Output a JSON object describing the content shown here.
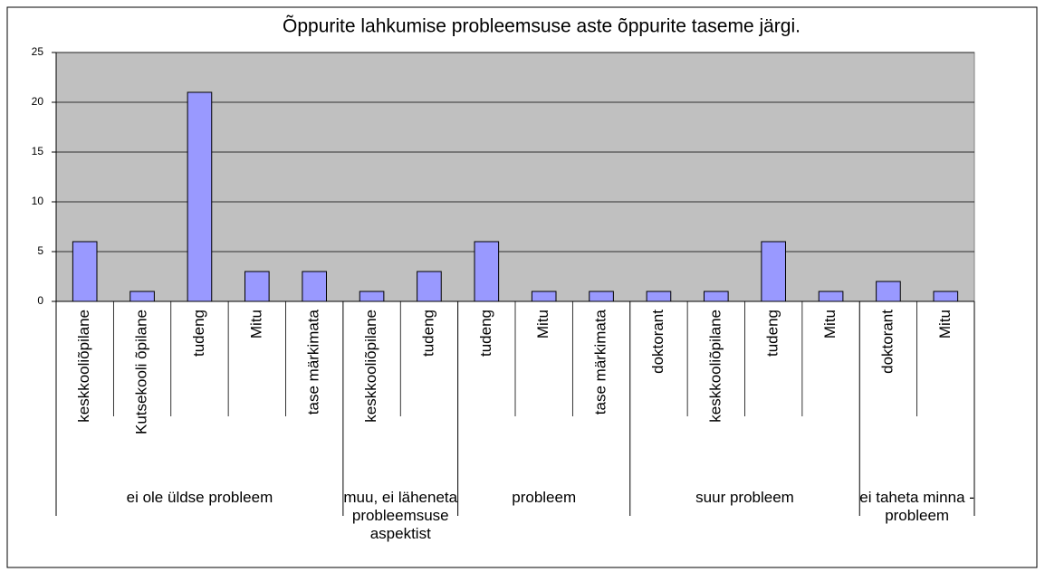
{
  "chart_data": {
    "type": "bar",
    "title": "Õppurite lahkumise probleemsuse aste õppurite taseme järgi.",
    "groups": [
      {
        "name": "ei ole üldse probleem",
        "categories": [
          "keskkooliõpilane",
          "Kutsekooli õpilane",
          "tudeng",
          "Mitu",
          "tase märkimata"
        ]
      },
      {
        "name": "muu, ei läheneta probleemsuse aspektist",
        "categories": [
          "keskkooliõpilane",
          "tudeng"
        ]
      },
      {
        "name": "probleem",
        "categories": [
          "tudeng",
          "Mitu",
          "tase märkimata"
        ]
      },
      {
        "name": "suur probleem",
        "categories": [
          "doktorant",
          "keskkooliõpilane",
          "tudeng",
          "Mitu"
        ]
      },
      {
        "name": "ei taheta minna - probleem",
        "categories": [
          "doktorant",
          "Mitu"
        ]
      }
    ],
    "values": [
      6,
      1,
      21,
      3,
      3,
      1,
      3,
      6,
      1,
      1,
      1,
      1,
      6,
      1,
      2,
      1
    ],
    "color": "#9999ff",
    "background": "#c0c0c0",
    "ylim": [
      0,
      25
    ],
    "yticks": [
      0,
      5,
      10,
      15,
      20,
      25
    ],
    "grid": true
  }
}
